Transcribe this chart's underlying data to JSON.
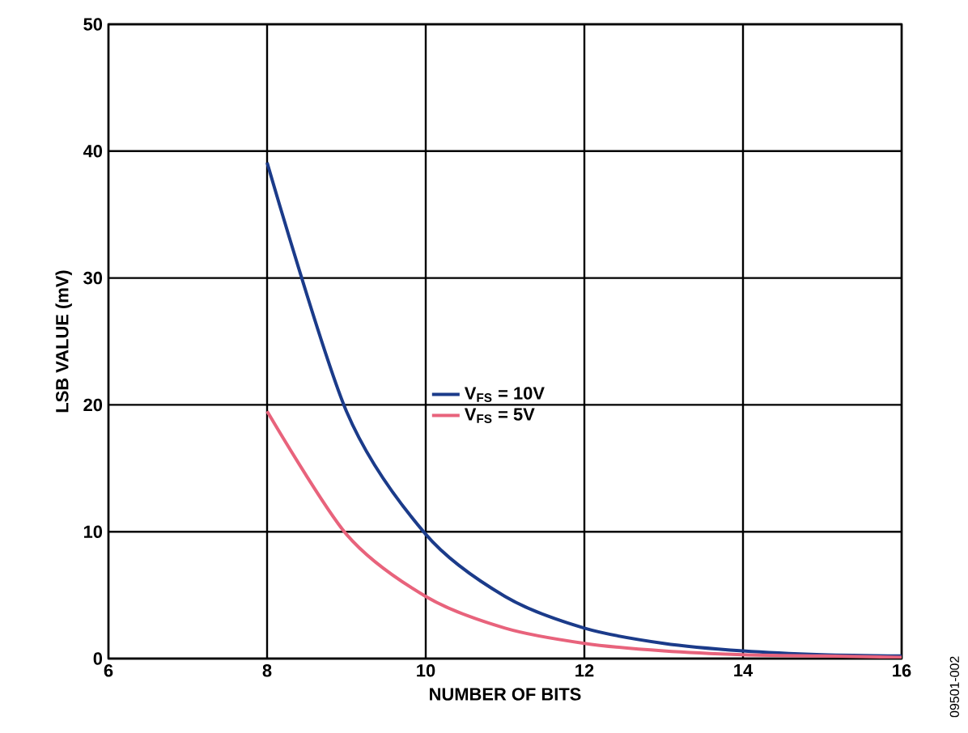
{
  "chart_data": {
    "type": "line",
    "xlabel": "NUMBER OF BITS",
    "ylabel": "LSB VALUE (mV)",
    "x": [
      8,
      9,
      10,
      11,
      12,
      13,
      14,
      15,
      16
    ],
    "series": [
      {
        "name": "V$_{FS}$ = 10V",
        "color": "#1b3b8a",
        "values": [
          39.1,
          19.5,
          9.8,
          4.9,
          2.4,
          1.2,
          0.6,
          0.3,
          0.2
        ]
      },
      {
        "name": "V$_{FS}$ = 5V",
        "color": "#e8637c",
        "values": [
          19.5,
          9.8,
          4.9,
          2.4,
          1.2,
          0.6,
          0.3,
          0.2,
          0.1
        ]
      }
    ],
    "xlim": [
      6,
      16
    ],
    "ylim": [
      0,
      50
    ],
    "xticks": [
      6,
      8,
      10,
      12,
      14,
      16
    ],
    "yticks": [
      0,
      10,
      20,
      30,
      40,
      50
    ],
    "grid": true,
    "legend": "center",
    "marker": "none",
    "line_style": "solid",
    "annotations": [
      "09501-002"
    ]
  }
}
